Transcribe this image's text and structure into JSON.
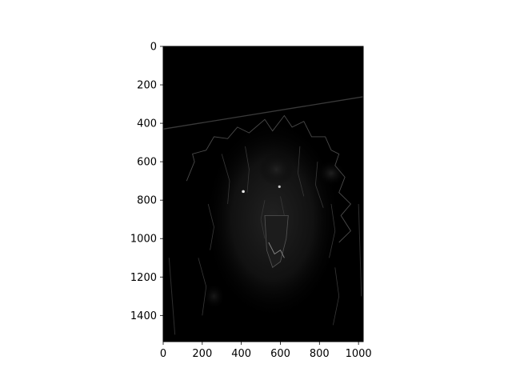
{
  "chart_data": {
    "type": "image",
    "content": "dark grayscale image of a snarling wolf",
    "colormap": "gray",
    "xlim": [
      0,
      1024
    ],
    "ylim": [
      1536,
      0
    ],
    "y_axis_inverted": true,
    "x_ticks": [
      0,
      200,
      400,
      600,
      800,
      1000
    ],
    "x_tick_labels": [
      "0",
      "200",
      "400",
      "600",
      "800",
      "1000"
    ],
    "y_ticks": [
      0,
      200,
      400,
      600,
      800,
      1000,
      1200,
      1400
    ],
    "y_tick_labels": [
      "0",
      "200",
      "400",
      "600",
      "800",
      "1000",
      "1200",
      "1400"
    ],
    "title": "",
    "xlabel": "",
    "ylabel": "",
    "grid": false,
    "legend": false
  }
}
